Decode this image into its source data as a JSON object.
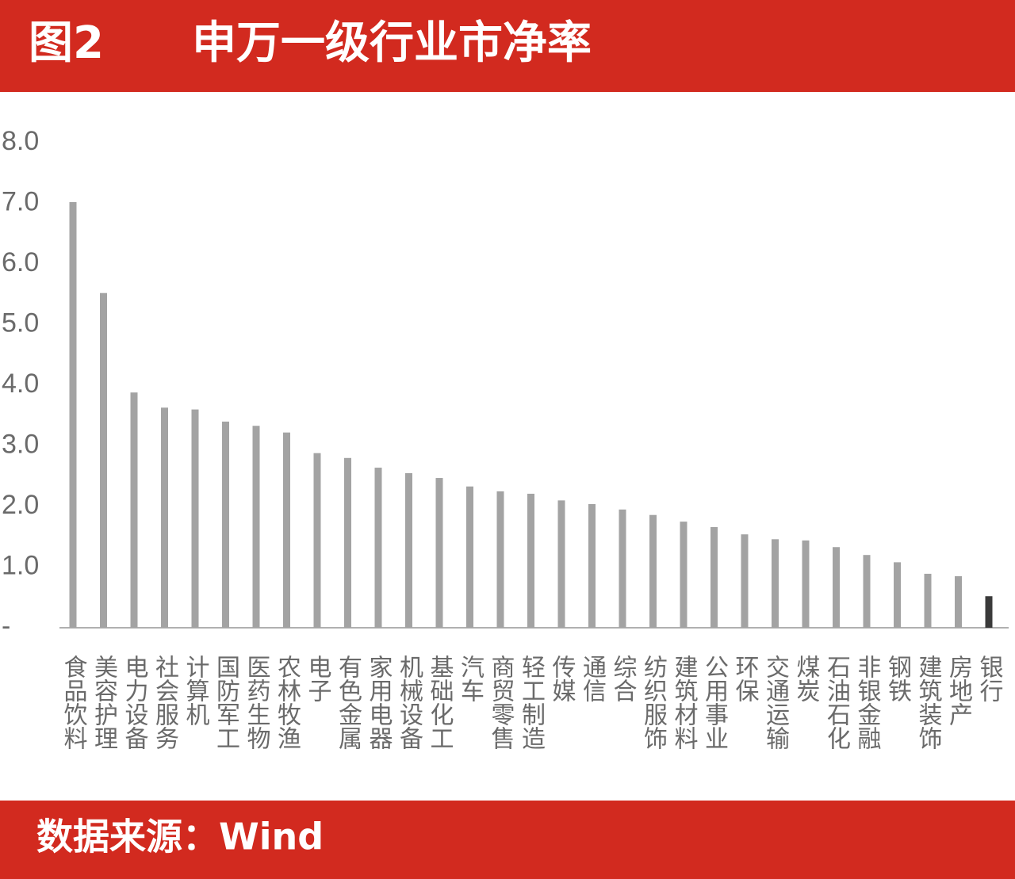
{
  "chart_data": {
    "type": "bar",
    "figure_label": "图2",
    "title": "申万一级行业市净率",
    "source": "数据来源：Wind",
    "categories": [
      "食品饮料",
      "美容护理",
      "电力设备",
      "社会服务",
      "计算机",
      "国防军工",
      "医药生物",
      "农林牧渔",
      "电子",
      "有色金属",
      "家用电器",
      "机械设备",
      "基础化工",
      "汽车",
      "商贸零售",
      "轻工制造",
      "传媒",
      "通信",
      "综合",
      "纺织服饰",
      "建筑材料",
      "公用事业",
      "环保",
      "交通运输",
      "煤炭",
      "石油石化",
      "非银金融",
      "钢铁",
      "建筑装饰",
      "房地产",
      "银行"
    ],
    "values": [
      7.02,
      5.52,
      3.88,
      3.63,
      3.6,
      3.4,
      3.33,
      3.22,
      2.88,
      2.8,
      2.64,
      2.55,
      2.47,
      2.33,
      2.25,
      2.21,
      2.1,
      2.04,
      1.95,
      1.86,
      1.75,
      1.66,
      1.54,
      1.46,
      1.44,
      1.33,
      1.2,
      1.08,
      0.89,
      0.85,
      0.52
    ],
    "colors": [
      "#a3a3a3",
      "#a3a3a3",
      "#a3a3a3",
      "#a3a3a3",
      "#a3a3a3",
      "#a3a3a3",
      "#a3a3a3",
      "#a3a3a3",
      "#a3a3a3",
      "#a3a3a3",
      "#a3a3a3",
      "#a3a3a3",
      "#a3a3a3",
      "#a3a3a3",
      "#a3a3a3",
      "#a3a3a3",
      "#a3a3a3",
      "#a3a3a3",
      "#a3a3a3",
      "#a3a3a3",
      "#a3a3a3",
      "#a3a3a3",
      "#a3a3a3",
      "#a3a3a3",
      "#a3a3a3",
      "#a3a3a3",
      "#a3a3a3",
      "#a3a3a3",
      "#a3a3a3",
      "#a3a3a3",
      "#3a3a3a"
    ],
    "ylim": [
      0,
      8
    ],
    "yticks": [
      {
        "value": 0,
        "label": "-"
      },
      {
        "value": 1,
        "label": "1.0"
      },
      {
        "value": 2,
        "label": "2.0"
      },
      {
        "value": 3,
        "label": "3.0"
      },
      {
        "value": 4,
        "label": "4.0"
      },
      {
        "value": 5,
        "label": "5.0"
      },
      {
        "value": 6,
        "label": "6.0"
      },
      {
        "value": 7,
        "label": "7.0"
      },
      {
        "value": 8,
        "label": "8.0"
      }
    ],
    "grid": false
  }
}
